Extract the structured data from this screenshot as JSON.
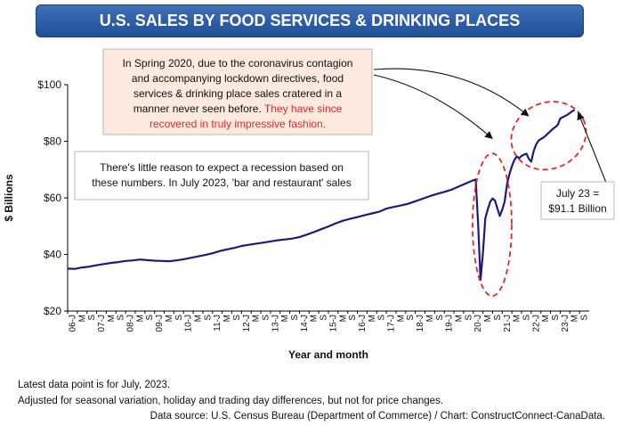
{
  "title": "U.S. SALES BY FOOD SERVICES & DRINKING PLACES",
  "callout_top": {
    "lines": [
      "In Spring 2020, due to the coronavirus contagion",
      "and accompanying lockdown directives, food",
      "services & drinking place sales cratered in a",
      "manner never seen before."
    ],
    "red_lines": [
      "They have since",
      "recovered in truly impressive fashion."
    ]
  },
  "callout_mid": {
    "lines": [
      "There's little reason to expect a recession based on",
      "these numbers. In July 2023, 'bar and restaurant' sales"
    ]
  },
  "callout_right": {
    "line1": "July 23 =",
    "line2": "$91.1 Billion"
  },
  "notes": [
    "Latest data point is for July, 2023.",
    "Adjusted for seasonal variation, holiday and trading day differences, but not for price changes."
  ],
  "source": "Data source: U.S. Census Bureau (Department of Commerce) / Chart: ConstructConnect-CanaData.",
  "colors": {
    "line": "#1a1a80",
    "banner": "#2a5ca8",
    "highlight": "#e8262a",
    "callout_top_bg": "#fde9dd"
  },
  "chart_data": {
    "type": "line",
    "xlabel": "Year and month",
    "ylabel": "$ Billions",
    "ylim": [
      20,
      100
    ],
    "y_ticks": [
      "$20",
      "$40",
      "$60",
      "$80",
      "$100"
    ],
    "x_tick_labels": [
      "06-J",
      "M",
      "S",
      "07-J",
      "M",
      "S",
      "08-J",
      "M",
      "S",
      "09-J",
      "M",
      "S",
      "10-J",
      "M",
      "S",
      "11-J",
      "M",
      "S",
      "12-J",
      "M",
      "S",
      "13-J",
      "M",
      "S",
      "14-J",
      "M",
      "S",
      "15-J",
      "M",
      "S",
      "16-J",
      "M",
      "S",
      "17-J",
      "M",
      "S",
      "18-J",
      "M",
      "S",
      "19-J",
      "M",
      "S",
      "20-J",
      "M",
      "S",
      "21-J",
      "M",
      "S",
      "22-J",
      "M",
      "S",
      "23-J",
      "M",
      "S"
    ],
    "grid": false,
    "series": [
      {
        "points": [
          [
            "2006-01",
            35.0
          ],
          [
            "2006-04",
            34.9
          ],
          [
            "2006-07",
            35.4
          ],
          [
            "2006-10",
            35.7
          ],
          [
            "2007-01",
            36.2
          ],
          [
            "2007-04",
            36.6
          ],
          [
            "2007-07",
            37.0
          ],
          [
            "2007-10",
            37.3
          ],
          [
            "2008-01",
            37.7
          ],
          [
            "2008-04",
            37.9
          ],
          [
            "2008-07",
            38.2
          ],
          [
            "2008-10",
            38.0
          ],
          [
            "2009-01",
            37.8
          ],
          [
            "2009-04",
            37.7
          ],
          [
            "2009-07",
            37.6
          ],
          [
            "2009-10",
            37.9
          ],
          [
            "2010-01",
            38.3
          ],
          [
            "2010-04",
            38.8
          ],
          [
            "2010-07",
            39.3
          ],
          [
            "2010-10",
            39.8
          ],
          [
            "2011-01",
            40.4
          ],
          [
            "2011-04",
            41.2
          ],
          [
            "2011-07",
            41.8
          ],
          [
            "2011-10",
            42.3
          ],
          [
            "2012-01",
            43.0
          ],
          [
            "2012-04",
            43.4
          ],
          [
            "2012-07",
            43.8
          ],
          [
            "2012-10",
            44.2
          ],
          [
            "2013-01",
            44.6
          ],
          [
            "2013-04",
            45.0
          ],
          [
            "2013-07",
            45.3
          ],
          [
            "2013-10",
            45.6
          ],
          [
            "2014-01",
            46.1
          ],
          [
            "2014-04",
            47.0
          ],
          [
            "2014-07",
            47.9
          ],
          [
            "2014-10",
            48.9
          ],
          [
            "2015-01",
            49.9
          ],
          [
            "2015-04",
            51.0
          ],
          [
            "2015-07",
            51.9
          ],
          [
            "2015-10",
            52.6
          ],
          [
            "2016-01",
            53.2
          ],
          [
            "2016-04",
            53.9
          ],
          [
            "2016-07",
            54.5
          ],
          [
            "2016-10",
            55.1
          ],
          [
            "2017-01",
            56.2
          ],
          [
            "2017-04",
            56.8
          ],
          [
            "2017-07",
            57.3
          ],
          [
            "2017-10",
            57.9
          ],
          [
            "2018-01",
            58.8
          ],
          [
            "2018-04",
            59.7
          ],
          [
            "2018-07",
            60.6
          ],
          [
            "2018-10",
            61.4
          ],
          [
            "2019-01",
            62.1
          ],
          [
            "2019-04",
            62.9
          ],
          [
            "2019-07",
            64.0
          ],
          [
            "2019-10",
            65.1
          ],
          [
            "2020-01",
            66.2
          ],
          [
            "2020-02",
            66.5
          ],
          [
            "2020-03",
            51.0
          ],
          [
            "2020-04",
            31.0
          ],
          [
            "2020-05",
            40.5
          ],
          [
            "2020-06",
            52.8
          ],
          [
            "2020-07",
            56.0
          ],
          [
            "2020-08",
            58.6
          ],
          [
            "2020-09",
            59.8
          ],
          [
            "2020-10",
            59.0
          ],
          [
            "2020-11",
            56.2
          ],
          [
            "2020-12",
            53.6
          ],
          [
            "2021-01",
            55.8
          ],
          [
            "2021-02",
            58.6
          ],
          [
            "2021-03",
            65.0
          ],
          [
            "2021-04",
            68.5
          ],
          [
            "2021-05",
            71.2
          ],
          [
            "2021-06",
            73.4
          ],
          [
            "2021-07",
            74.6
          ],
          [
            "2021-08",
            74.0
          ],
          [
            "2021-09",
            74.8
          ],
          [
            "2021-10",
            75.3
          ],
          [
            "2021-11",
            75.6
          ],
          [
            "2021-12",
            73.8
          ],
          [
            "2022-01",
            72.8
          ],
          [
            "2022-02",
            76.5
          ],
          [
            "2022-03",
            78.8
          ],
          [
            "2022-04",
            80.2
          ],
          [
            "2022-05",
            80.8
          ],
          [
            "2022-06",
            81.3
          ],
          [
            "2022-07",
            82.0
          ],
          [
            "2022-08",
            82.8
          ],
          [
            "2022-09",
            83.6
          ],
          [
            "2022-10",
            84.4
          ],
          [
            "2022-11",
            85.0
          ],
          [
            "2022-12",
            85.8
          ],
          [
            "2023-01",
            88.0
          ],
          [
            "2023-02",
            88.5
          ],
          [
            "2023-03",
            88.9
          ],
          [
            "2023-04",
            89.4
          ],
          [
            "2023-05",
            90.0
          ],
          [
            "2023-06",
            90.6
          ],
          [
            "2023-07",
            91.1
          ]
        ]
      }
    ]
  }
}
